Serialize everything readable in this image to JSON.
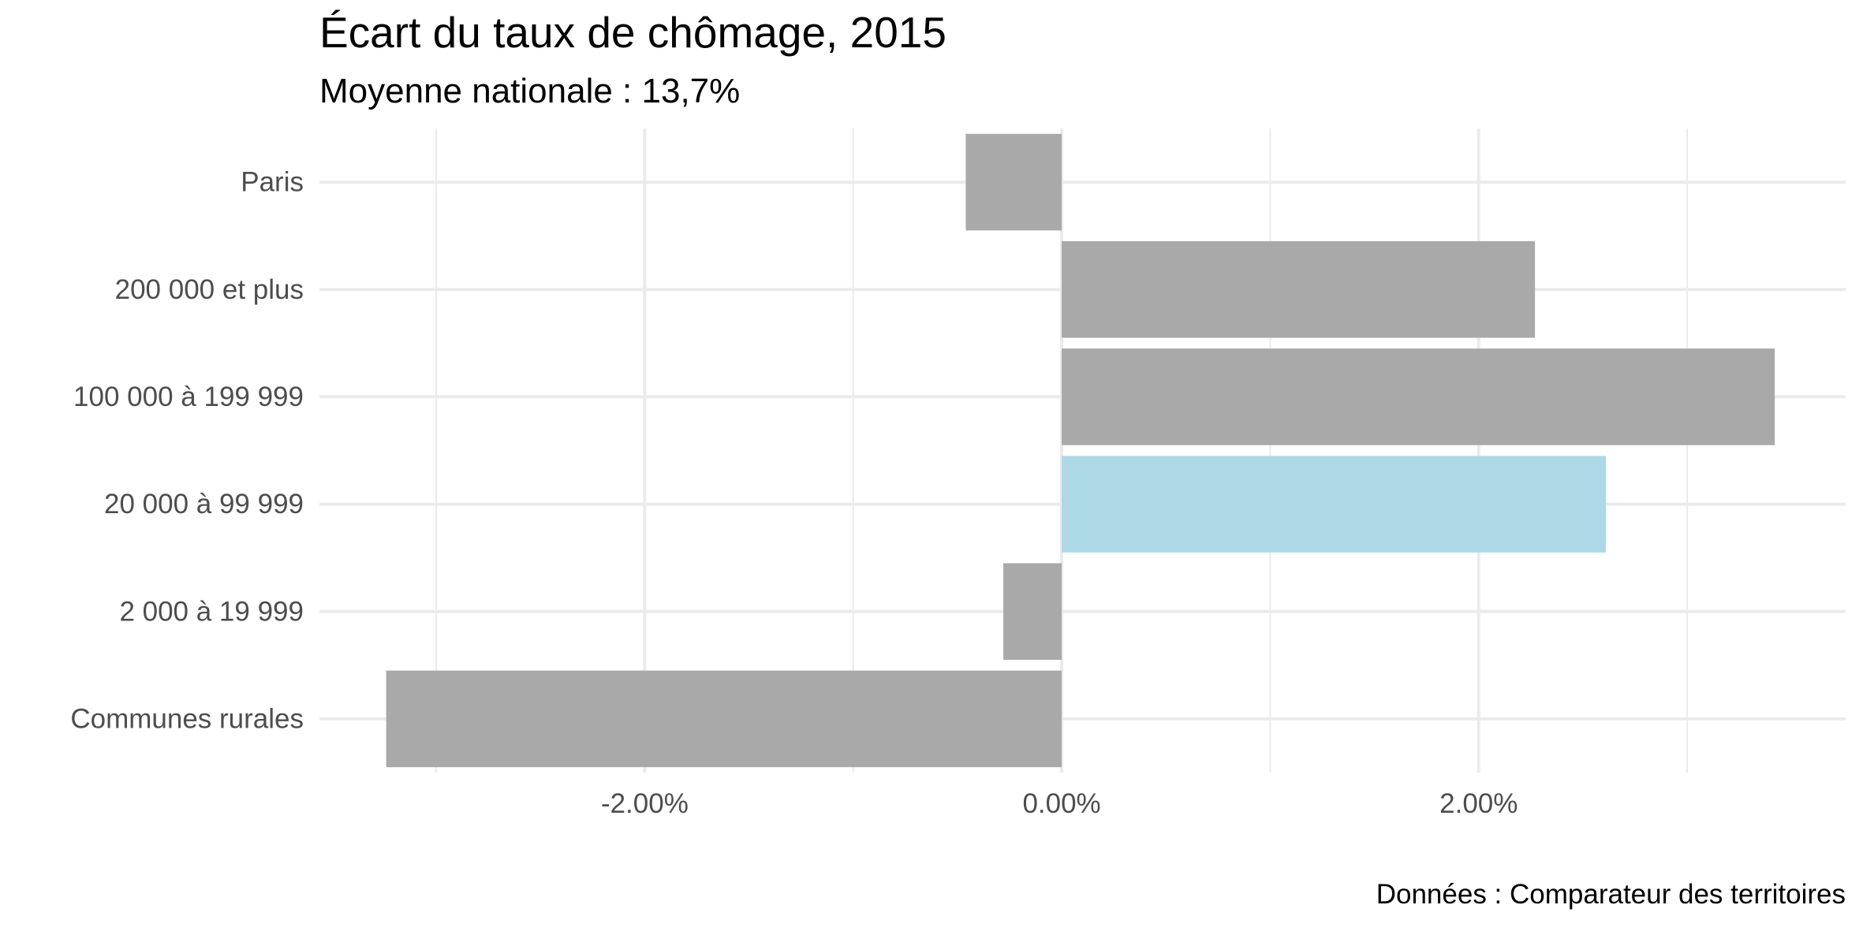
{
  "chart_data": {
    "type": "bar",
    "orientation": "horizontal",
    "title": "Écart du taux de chômage, 2015",
    "subtitle": "Moyenne nationale : 13,7%",
    "caption": "Données : Comparateur des territoires",
    "xlabel": "",
    "ylabel": "",
    "categories": [
      "Paris",
      "200 000 et plus",
      "100 000 à 199 999",
      "20 000 à 99 999",
      "2 000 à 19 999",
      "Communes rurales"
    ],
    "values": [
      -0.46,
      2.27,
      3.42,
      2.61,
      -0.28,
      -3.24
    ],
    "highlight_category": "20 000 à 99 999",
    "colors": {
      "default_bar": "#a9a9a9",
      "highlight_bar": "#add8e6",
      "grid": "#ebebeb"
    },
    "xlim": [
      -3.56,
      3.76
    ],
    "x_ticks": [
      {
        "value": -2,
        "label": "-2.00%"
      },
      {
        "value": 0,
        "label": "0.00%"
      },
      {
        "value": 2,
        "label": "2.00%"
      }
    ],
    "x_minor_ticks": [
      -3,
      -1,
      1,
      3
    ],
    "grid": true,
    "legend": "none"
  }
}
